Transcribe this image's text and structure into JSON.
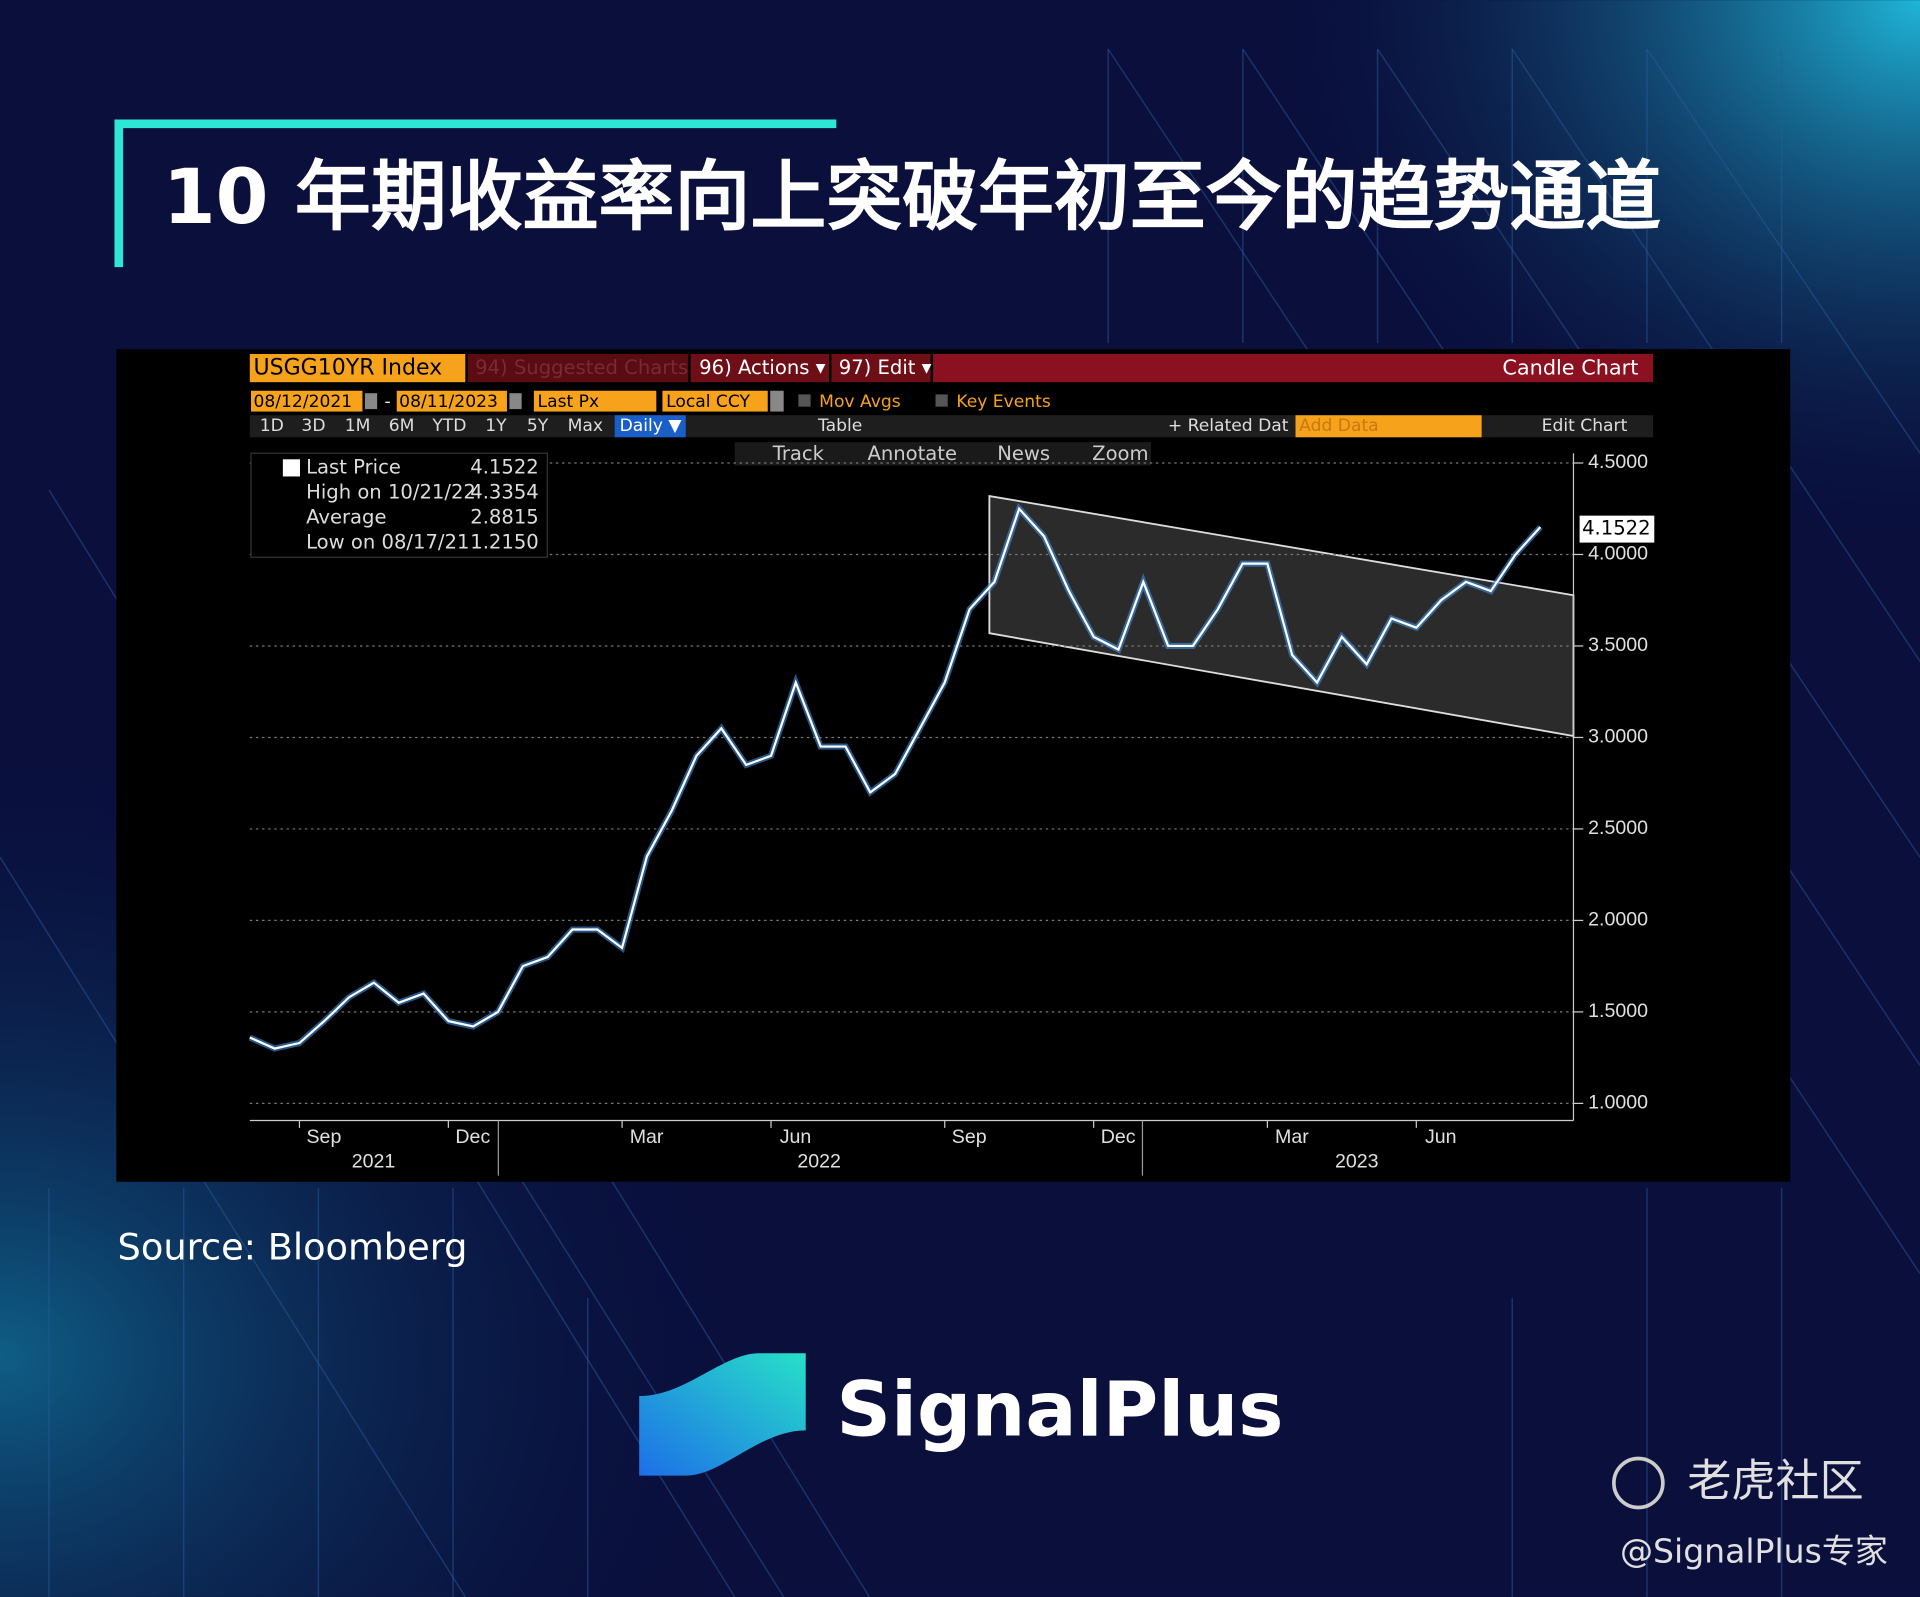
{
  "header": {
    "title": "10 年期收益率向上突破年初至今的趋势通道"
  },
  "toolbar": {
    "ticker": "USGG10YR Index",
    "suggested": "94) Suggested Charts",
    "actions": "96) Actions ▾",
    "edit": "97) Edit ▾",
    "chart_kind": "Candle Chart",
    "start_date": "08/12/2021",
    "dash": "-",
    "end_date": "08/11/2023",
    "field": "Last Px",
    "currency": "Local CCY",
    "mov_avgs": "Mov Avgs",
    "key_events": "Key Events",
    "ranges": [
      "1D",
      "3D",
      "1M",
      "6M",
      "YTD",
      "1Y",
      "5Y",
      "Max"
    ],
    "period": "Daily ▼",
    "table": "Table",
    "related": "+ Related Dat",
    "add_data": "Add Data",
    "edit_chart": "Edit Chart",
    "tools": [
      "Track",
      "Annotate",
      "News",
      "Zoom"
    ]
  },
  "chart_data": {
    "type": "line",
    "color": "#ffffff",
    "legend_items": [
      {
        "label": "Last Price",
        "value": "4.1522"
      },
      {
        "label": "High on 10/21/22",
        "value": "4.3354"
      },
      {
        "label": "Average",
        "value": "2.8815"
      },
      {
        "label": "Low on 08/17/21",
        "value": "1.2150"
      }
    ],
    "last_price_tag": "4.1522",
    "categories": [
      null,
      null,
      "Sep",
      null,
      null,
      null,
      null,
      null,
      "Dec",
      null,
      null,
      null,
      null,
      null,
      null,
      "Mar",
      null,
      null,
      null,
      null,
      null,
      "Jun",
      null,
      null,
      null,
      null,
      null,
      null,
      "Sep",
      null,
      null,
      null,
      null,
      null,
      "Dec",
      null,
      null,
      null,
      null,
      null,
      null,
      "Mar",
      null,
      null,
      null,
      null,
      null,
      "Jun",
      null,
      null,
      null,
      null,
      null
    ],
    "years": [
      "2021",
      "2022",
      "2023"
    ],
    "values": [
      1.36,
      1.3,
      1.33,
      1.45,
      1.58,
      1.66,
      1.55,
      1.6,
      1.45,
      1.42,
      1.5,
      1.75,
      1.8,
      1.95,
      1.95,
      1.85,
      2.35,
      2.6,
      2.9,
      3.05,
      2.85,
      2.9,
      3.3,
      2.95,
      2.95,
      2.7,
      2.8,
      3.05,
      3.3,
      3.7,
      3.85,
      4.25,
      4.1,
      3.8,
      3.55,
      3.48,
      3.85,
      3.5,
      3.5,
      3.7,
      3.95,
      3.95,
      3.45,
      3.3,
      3.55,
      3.4,
      3.65,
      3.6,
      3.75,
      3.85,
      3.8,
      4.0,
      4.15
    ],
    "ylim": [
      1,
      4.5
    ],
    "yticks": [
      {
        "value": 1,
        "label": "1.0000"
      },
      {
        "value": 1.5,
        "label": "1.5000"
      },
      {
        "value": 2,
        "label": "2.0000"
      },
      {
        "value": 2.5,
        "label": "2.5000"
      },
      {
        "value": 3,
        "label": "3.0000"
      },
      {
        "value": 3.5,
        "label": "3.5000"
      },
      {
        "value": 4,
        "label": "4.0000"
      },
      {
        "value": 4.5,
        "label": "4.5000"
      }
    ],
    "grid": true
  },
  "footer": {
    "source": "Source: Bloomberg",
    "brand": "SignalPlus",
    "watermark": "老虎社区",
    "handle": "@SignalPlus专家"
  }
}
